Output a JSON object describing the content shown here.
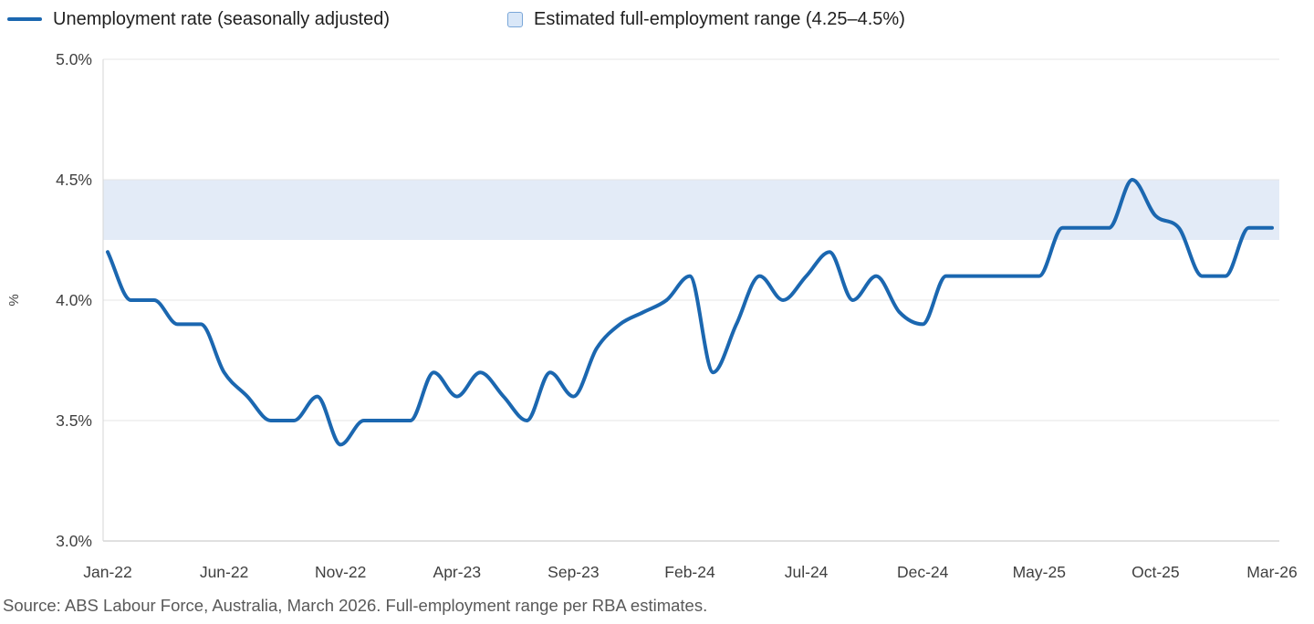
{
  "legend": {
    "series_label": "Unemployment rate (seasonally adjusted)",
    "band_label": "Estimated full-employment range (4.25–4.5%)"
  },
  "source": "Source: ABS Labour Force, Australia, March 2026. Full-employment range per RBA estimates.",
  "colors": {
    "line": "#1b67b0",
    "band_fill": "#e3ebf7",
    "legend_box_fill": "#d9e7f8",
    "legend_box_border": "#7aa7d8",
    "grid": "#e6e6e6",
    "axis": "#d6d6d6",
    "axis_strong": "#c2c2c2",
    "tick_text": "#3f3f3f",
    "source_text": "#595959"
  },
  "chart_data": {
    "type": "line",
    "title": "",
    "xlabel": "",
    "ylabel": "%",
    "ylim": [
      3.0,
      5.0
    ],
    "grid": "horizontal",
    "legend_position": "top",
    "y_ticks": [
      3.0,
      3.5,
      4.0,
      4.5,
      5.0
    ],
    "y_tick_labels": [
      "3.0%",
      "3.5%",
      "4.0%",
      "4.5%",
      "5.0%"
    ],
    "x_tick_every": 5,
    "x_tick_labels": [
      "Jan-22",
      "Jun-22",
      "Nov-22",
      "Apr-23",
      "Sep-23",
      "Feb-24",
      "Jul-24",
      "Dec-24",
      "May-25",
      "Oct-25",
      "Mar-26"
    ],
    "x": [
      "Jan-22",
      "Feb-22",
      "Mar-22",
      "Apr-22",
      "May-22",
      "Jun-22",
      "Jul-22",
      "Aug-22",
      "Sep-22",
      "Oct-22",
      "Nov-22",
      "Dec-22",
      "Jan-23",
      "Feb-23",
      "Mar-23",
      "Apr-23",
      "May-23",
      "Jun-23",
      "Jul-23",
      "Aug-23",
      "Sep-23",
      "Oct-23",
      "Nov-23",
      "Dec-23",
      "Jan-24",
      "Feb-24",
      "Mar-24",
      "Apr-24",
      "May-24",
      "Jun-24",
      "Jul-24",
      "Aug-24",
      "Sep-24",
      "Oct-24",
      "Nov-24",
      "Dec-24",
      "Jan-25",
      "Feb-25",
      "Mar-25",
      "Apr-25",
      "May-25",
      "Jun-25",
      "Jul-25",
      "Aug-25",
      "Sep-25",
      "Oct-25",
      "Nov-25",
      "Dec-25",
      "Jan-26",
      "Feb-26",
      "Mar-26"
    ],
    "series": [
      {
        "name": "Unemployment rate (seasonally adjusted)",
        "values": [
          4.2,
          4.0,
          4.0,
          3.9,
          3.9,
          3.7,
          3.6,
          3.5,
          3.5,
          3.6,
          3.4,
          3.5,
          3.5,
          3.5,
          3.7,
          3.6,
          3.7,
          3.6,
          3.5,
          3.7,
          3.6,
          3.8,
          3.9,
          3.95,
          4.0,
          4.1,
          3.7,
          3.9,
          4.1,
          4.0,
          4.1,
          4.2,
          4.0,
          4.1,
          3.95,
          3.9,
          4.1,
          4.1,
          4.1,
          4.1,
          4.1,
          4.3,
          4.3,
          4.3,
          4.5,
          4.35,
          4.3,
          4.1,
          4.1,
          4.3,
          4.3
        ]
      }
    ],
    "band": {
      "name": "Estimated full-employment range",
      "from": 4.25,
      "to": 4.5
    }
  }
}
